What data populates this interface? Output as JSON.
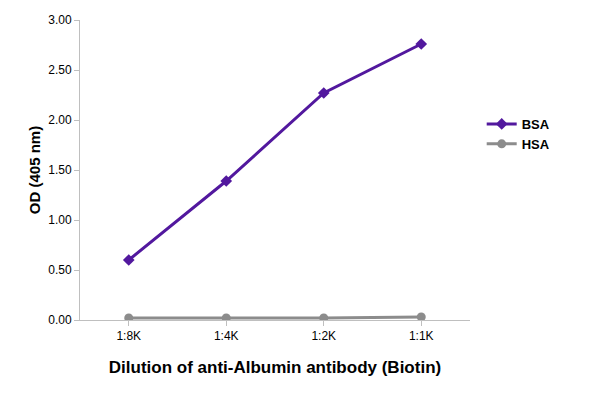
{
  "chart_data": {
    "type": "line",
    "xlabel": "Dilution of anti-Albumin antibody (Biotin)",
    "ylabel": "OD (405 nm)",
    "categories": [
      "1:8K",
      "1:4K",
      "1:2K",
      "1:1K"
    ],
    "series": [
      {
        "name": "BSA",
        "color": "#52189e",
        "marker": "diamond",
        "values": [
          0.6,
          1.39,
          2.27,
          2.76
        ]
      },
      {
        "name": "HSA",
        "color": "#8c8c8c",
        "marker": "circle",
        "values": [
          0.02,
          0.02,
          0.02,
          0.03
        ]
      }
    ],
    "ylim": [
      0,
      3
    ],
    "yticks": [
      {
        "value": 0,
        "label": "0.00"
      },
      {
        "value": 0.5,
        "label": "0.50"
      },
      {
        "value": 1,
        "label": "1.00"
      },
      {
        "value": 1.5,
        "label": "1.50"
      },
      {
        "value": 2,
        "label": "2.00"
      },
      {
        "value": 2.5,
        "label": "2.50"
      },
      {
        "value": 3,
        "label": "3.00"
      }
    ],
    "grid": false,
    "legend": "right"
  }
}
